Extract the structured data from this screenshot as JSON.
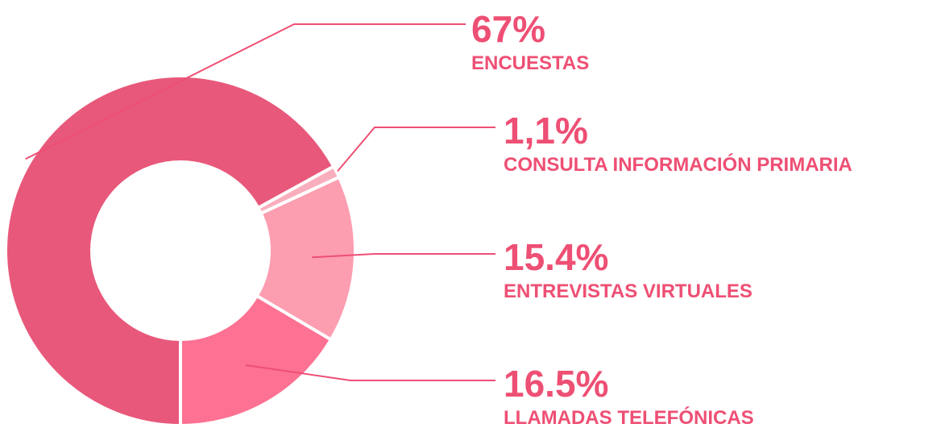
{
  "chart_data": {
    "type": "donut",
    "categories": [
      "ENCUESTAS",
      "CONSULTA INFORMACIÓN PRIMARIA",
      "ENTREVISTAS VIRTUALES",
      "LLAMADAS TELEFÓNICAS"
    ],
    "values": [
      67,
      1.1,
      15.4,
      16.5
    ],
    "value_labels": [
      "67%",
      "1,1%",
      "15.4%",
      "16.5%"
    ],
    "colors": [
      "#e8587a",
      "#f9aebd",
      "#fc9db0",
      "#fd7192"
    ]
  }
}
